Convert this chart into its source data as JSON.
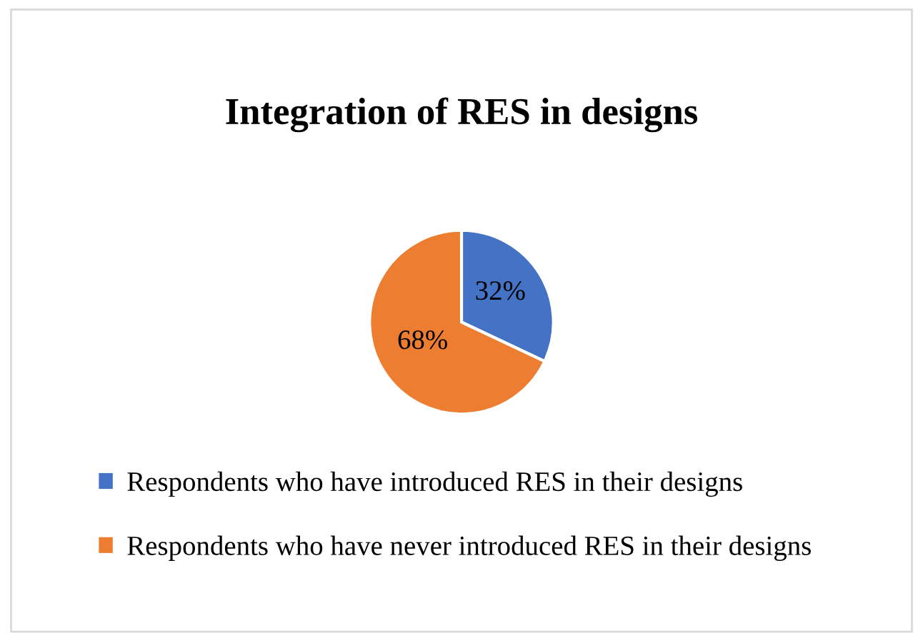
{
  "chart_data": {
    "type": "pie",
    "title": "Integration of RES in designs",
    "categories": [
      "Respondents who have introduced RES in their designs",
      "Respondents who have never introduced RES in their designs"
    ],
    "values": [
      32,
      68
    ],
    "colors": [
      "#4472c4",
      "#ed7d31"
    ],
    "value_labels": [
      "32%",
      "68%"
    ],
    "legend": "bottom"
  }
}
